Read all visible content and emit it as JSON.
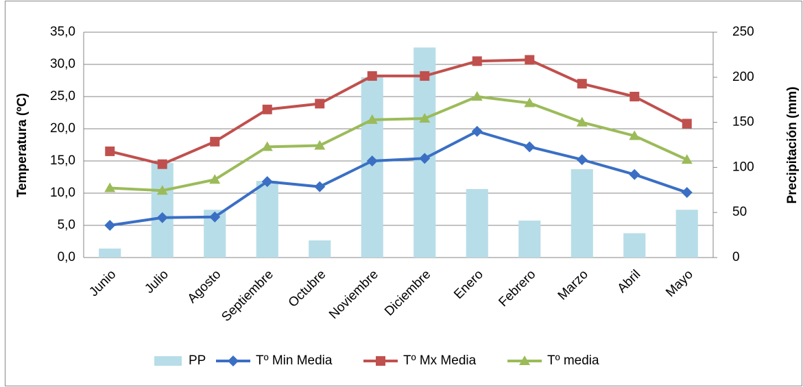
{
  "chart_data": {
    "type": "combo",
    "y_label": "Temperatura (ºC)",
    "y2_label": "Precipitación  (mm)",
    "categories": [
      "Junio",
      "Julio",
      "Agosto",
      "Septiembre",
      "Octubre",
      "Noviembre",
      "Diciembre",
      "Enero",
      "Febrero",
      "Marzo",
      "Abril",
      "Mayo"
    ],
    "series": [
      {
        "name": "PP",
        "type": "bar",
        "axis": "y2",
        "color": "#b7dde8",
        "values": [
          10,
          105,
          53,
          85,
          19,
          200,
          233,
          76,
          41,
          98,
          27,
          53
        ]
      },
      {
        "name": "Tº Min Media",
        "type": "line",
        "marker": "diamond",
        "color": "#3a6fc4",
        "values": [
          5.0,
          6.2,
          6.3,
          11.8,
          11.0,
          15.0,
          15.4,
          19.6,
          17.2,
          15.2,
          12.9,
          10.1
        ]
      },
      {
        "name": "Tº Mx Media",
        "type": "line",
        "marker": "square",
        "color": "#c0504d",
        "values": [
          16.5,
          14.5,
          18.0,
          23.0,
          23.9,
          28.2,
          28.2,
          30.5,
          30.7,
          27.0,
          25.0,
          20.8
        ]
      },
      {
        "name": "Tº media",
        "type": "line",
        "marker": "triangle",
        "color": "#9bbb59",
        "values": [
          10.8,
          10.4,
          12.1,
          17.2,
          17.4,
          21.4,
          21.6,
          25.0,
          24.0,
          21.0,
          18.9,
          15.2
        ]
      }
    ],
    "ylim": [
      0,
      35
    ],
    "yticks": [
      {
        "value": 0,
        "label": "0,0"
      },
      {
        "value": 5,
        "label": "5,0"
      },
      {
        "value": 10,
        "label": "10,0"
      },
      {
        "value": 15,
        "label": "15,0"
      },
      {
        "value": 20,
        "label": "20,0"
      },
      {
        "value": 25,
        "label": "25,0"
      },
      {
        "value": 30,
        "label": "30,0"
      },
      {
        "value": 35,
        "label": "35,0"
      }
    ],
    "y2lim": [
      0,
      250
    ],
    "y2ticks": [
      0,
      50,
      100,
      150,
      200,
      250
    ],
    "grid": true,
    "legend": "bottom"
  }
}
